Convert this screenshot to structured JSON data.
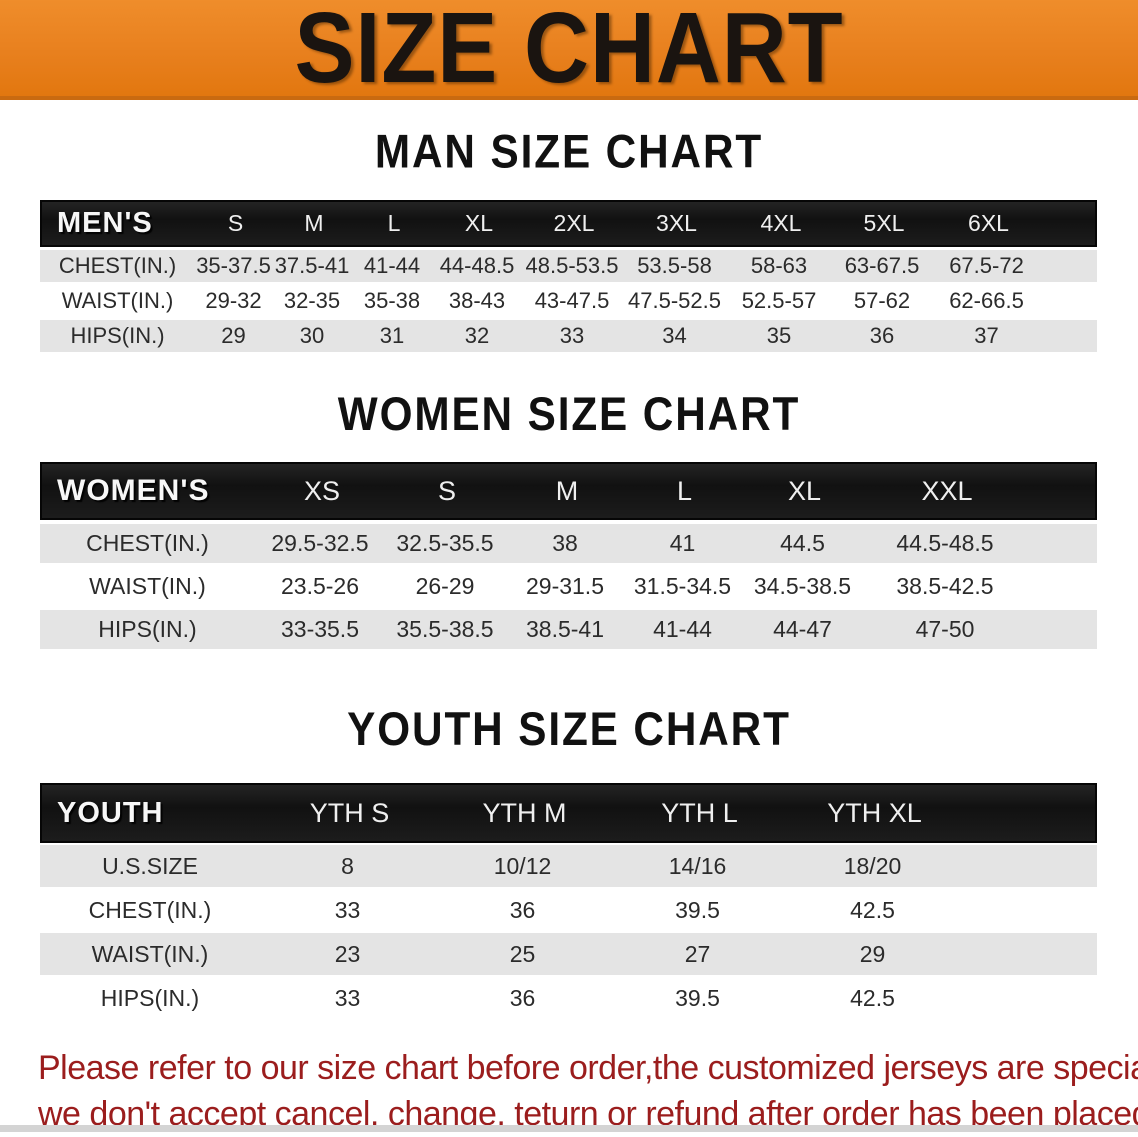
{
  "banner": {
    "title": "SIZE CHART",
    "bg_color": "#e8801e",
    "text_color": "#1a1410"
  },
  "colors": {
    "table_header_bg": "#161616",
    "table_header_text": "#f7f7f7",
    "stripe_row_bg": "#e4e4e4",
    "footer_text": "#9b1d1d"
  },
  "sections": {
    "men": {
      "title": "MAN SIZE CHART",
      "table": {
        "header_label": "MEN'S",
        "sizes": [
          "S",
          "M",
          "L",
          "XL",
          "2XL",
          "3XL",
          "4XL",
          "5XL",
          "6XL"
        ],
        "rows": [
          {
            "label": "CHEST(IN.)",
            "values": [
              "35-37.5",
              "37.5-41",
              "41-44",
              "44-48.5",
              "48.5-53.5",
              "53.5-58",
              "58-63",
              "63-67.5",
              "67.5-72"
            ]
          },
          {
            "label": "WAIST(IN.)",
            "values": [
              "29-32",
              "32-35",
              "35-38",
              "38-43",
              "43-47.5",
              "47.5-52.5",
              "52.5-57",
              "57-62",
              "62-66.5"
            ]
          },
          {
            "label": "HIPS(IN.)",
            "values": [
              "29",
              "30",
              "31",
              "32",
              "33",
              "34",
              "35",
              "36",
              "37"
            ]
          }
        ]
      }
    },
    "women": {
      "title": "WOMEN SIZE CHART",
      "table": {
        "header_label": "WOMEN'S",
        "sizes": [
          "XS",
          "S",
          "M",
          "L",
          "XL",
          "XXL"
        ],
        "rows": [
          {
            "label": "CHEST(IN.)",
            "values": [
              "29.5-32.5",
              "32.5-35.5",
              "38",
              "41",
              "44.5",
              "44.5-48.5"
            ]
          },
          {
            "label": "WAIST(IN.)",
            "values": [
              "23.5-26",
              "26-29",
              "29-31.5",
              "31.5-34.5",
              "34.5-38.5",
              "38.5-42.5"
            ]
          },
          {
            "label": "HIPS(IN.)",
            "values": [
              "33-35.5",
              "35.5-38.5",
              "38.5-41",
              "41-44",
              "44-47",
              "47-50"
            ]
          }
        ]
      }
    },
    "youth": {
      "title": "YOUTH SIZE CHART",
      "table": {
        "header_label": "YOUTH",
        "sizes": [
          "YTH S",
          "YTH M",
          "YTH L",
          "YTH XL"
        ],
        "rows": [
          {
            "label": "U.S.SIZE",
            "values": [
              "8",
              "10/12",
              "14/16",
              "18/20"
            ]
          },
          {
            "label": "CHEST(IN.)",
            "values": [
              "33",
              "36",
              "39.5",
              "42.5"
            ]
          },
          {
            "label": "WAIST(IN.)",
            "values": [
              "23",
              "25",
              "27",
              "29"
            ]
          },
          {
            "label": "HIPS(IN.)",
            "values": [
              "33",
              "36",
              "39.5",
              "42.5"
            ]
          }
        ]
      }
    }
  },
  "footer": {
    "line1": "Please refer to our size chart before order,the customized jerseys are special products,",
    "line2": "we don't accept cancel, change, teturn or refund after order has been placed!"
  }
}
